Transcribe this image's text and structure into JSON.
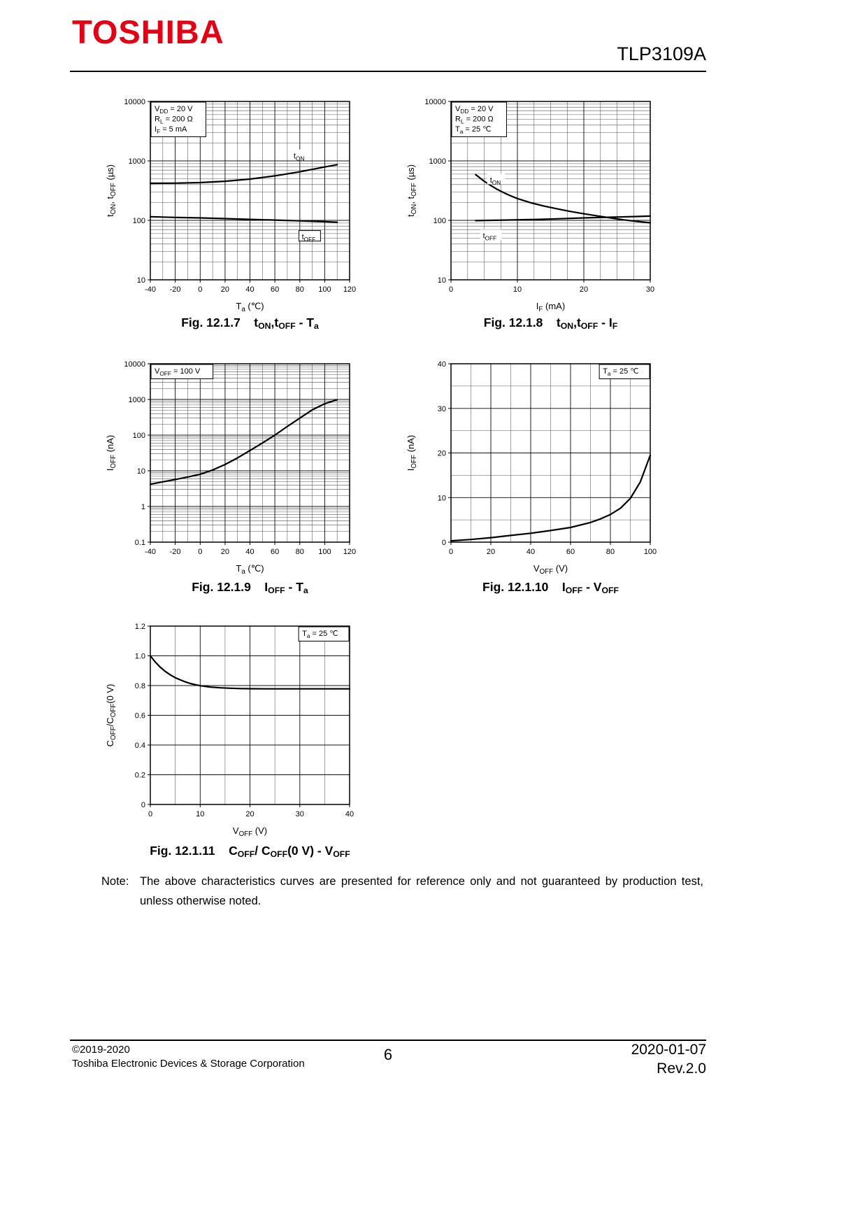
{
  "header": {
    "brand": "TOSHIBA",
    "part_number": "TLP3109A"
  },
  "note": {
    "label": "Note:",
    "line1": "The above characteristics curves are presented for reference only and not guaranteed by production test,",
    "line2": "unless otherwise noted."
  },
  "footer": {
    "copyright": "©2019-2020",
    "company": "Toshiba Electronic Devices & Storage Corporation",
    "page_number": "6",
    "date": "2020-01-07",
    "revision": "Rev.2.0"
  },
  "chart_data": [
    {
      "type": "line",
      "title": "Fig. 12.1.7 tON,tOFF - Ta",
      "caption_parts": [
        [
          "Fig. 12.1.7    t",
          0
        ],
        [
          "ON",
          1
        ],
        [
          ",t",
          0
        ],
        [
          "OFF",
          1
        ],
        [
          " - T",
          0
        ],
        [
          "a",
          1
        ]
      ],
      "x_axis": {
        "type": "linear",
        "min": -40,
        "max": 120,
        "grid_step": 10,
        "tick_values": [
          -40,
          -20,
          0,
          20,
          40,
          60,
          80,
          100,
          120
        ],
        "tick_labels": [
          "-40",
          "-20",
          "0",
          "20",
          "40",
          "60",
          "80",
          "100",
          "120"
        ],
        "label_parts": [
          [
            "T",
            0
          ],
          [
            "a",
            1
          ],
          [
            "  (℃)",
            0
          ]
        ]
      },
      "y_axis": {
        "type": "log",
        "min": 10,
        "max": 10000,
        "tick_values": [
          10,
          100,
          1000,
          10000
        ],
        "tick_labels": [
          "10",
          "100",
          "1000",
          "10000"
        ],
        "label_parts": [
          [
            "t",
            0
          ],
          [
            "ON",
            1
          ],
          [
            ", t",
            0
          ],
          [
            "OFF",
            1
          ],
          [
            "  (µs)",
            0
          ]
        ]
      },
      "conditions": {
        "pos": "tl",
        "lines": [
          [
            [
              "V",
              0
            ],
            [
              "DD",
              1
            ],
            [
              " = 20 V",
              0
            ]
          ],
          [
            [
              "R",
              0
            ],
            [
              "L",
              1
            ],
            [
              " = 200 Ω",
              0
            ]
          ],
          [
            [
              "I",
              0
            ],
            [
              "F",
              1
            ],
            [
              " = 5 mA",
              0
            ]
          ]
        ]
      },
      "series": [
        {
          "name": "tON",
          "points": [
            [
              -40,
              420
            ],
            [
              -20,
              422
            ],
            [
              0,
              432
            ],
            [
              20,
              455
            ],
            [
              40,
              495
            ],
            [
              60,
              560
            ],
            [
              80,
              655
            ],
            [
              100,
              790
            ],
            [
              110,
              865
            ]
          ]
        },
        {
          "name": "tOFF",
          "points": [
            [
              -40,
              115
            ],
            [
              -20,
              112
            ],
            [
              0,
              110
            ],
            [
              20,
              107
            ],
            [
              40,
              104
            ],
            [
              60,
              101
            ],
            [
              80,
              98
            ],
            [
              100,
              95
            ],
            [
              110,
              93
            ]
          ]
        }
      ],
      "annotations": [
        {
          "parts": [
            [
              "t",
              0
            ],
            [
              "ON",
              1
            ]
          ],
          "x": 80,
          "y": 1200,
          "box": false
        },
        {
          "parts": [
            [
              "t",
              0
            ],
            [
              "OFF",
              1
            ]
          ],
          "x": 88,
          "y": 52,
          "box": true
        }
      ]
    },
    {
      "type": "line",
      "title": "Fig. 12.1.8 tON,tOFF - IF",
      "caption_parts": [
        [
          "Fig. 12.1.8    t",
          0
        ],
        [
          "ON",
          1
        ],
        [
          ",t",
          0
        ],
        [
          "OFF",
          1
        ],
        [
          " - I",
          0
        ],
        [
          "F",
          1
        ]
      ],
      "x_axis": {
        "type": "linear",
        "min": 0,
        "max": 30,
        "grid_step": 2.5,
        "tick_values": [
          0,
          10,
          20,
          30
        ],
        "tick_labels": [
          "0",
          "10",
          "20",
          "30"
        ],
        "label_parts": [
          [
            "I",
            0
          ],
          [
            "F",
            1
          ],
          [
            "  (mA)",
            0
          ]
        ]
      },
      "y_axis": {
        "type": "log",
        "min": 10,
        "max": 10000,
        "tick_values": [
          10,
          100,
          1000,
          10000
        ],
        "tick_labels": [
          "10",
          "100",
          "1000",
          "10000"
        ],
        "label_parts": [
          [
            "t",
            0
          ],
          [
            "ON",
            1
          ],
          [
            ", t",
            0
          ],
          [
            "OFF",
            1
          ],
          [
            "  (µs)",
            0
          ]
        ]
      },
      "conditions": {
        "pos": "tl",
        "lines": [
          [
            [
              "V",
              0
            ],
            [
              "DD",
              1
            ],
            [
              " = 20 V",
              0
            ]
          ],
          [
            [
              "R",
              0
            ],
            [
              "L",
              1
            ],
            [
              " = 200 Ω",
              0
            ]
          ],
          [
            [
              "T",
              0
            ],
            [
              "a",
              1
            ],
            [
              " = 25 ℃",
              0
            ]
          ]
        ]
      },
      "series": [
        {
          "name": "tON",
          "points": [
            [
              3.7,
              590
            ],
            [
              5,
              455
            ],
            [
              6,
              385
            ],
            [
              7,
              330
            ],
            [
              8,
              290
            ],
            [
              9,
              258
            ],
            [
              10,
              233
            ],
            [
              12,
              198
            ],
            [
              14,
              174
            ],
            [
              16,
              156
            ],
            [
              18,
              141
            ],
            [
              20,
              129
            ],
            [
              22,
              119
            ],
            [
              24,
              110
            ],
            [
              26,
              102
            ],
            [
              28,
              96
            ],
            [
              30,
              91
            ]
          ]
        },
        {
          "name": "tOFF",
          "points": [
            [
              3.7,
              99
            ],
            [
              8,
              101
            ],
            [
              12,
              103
            ],
            [
              16,
              106
            ],
            [
              20,
              110
            ],
            [
              24,
              113
            ],
            [
              28,
              116
            ],
            [
              30,
              118
            ]
          ]
        }
      ],
      "annotations": [
        {
          "parts": [
            [
              "t",
              0
            ],
            [
              "ON",
              1
            ]
          ],
          "x": 6.8,
          "y": 470,
          "box": false
        },
        {
          "parts": [
            [
              "t",
              0
            ],
            [
              "OFF",
              1
            ]
          ],
          "x": 6,
          "y": 54,
          "box": false
        }
      ]
    },
    {
      "type": "line",
      "title": "Fig. 12.1.9 IOFF - Ta",
      "caption_parts": [
        [
          "Fig. 12.1.9    I",
          0
        ],
        [
          "OFF",
          1
        ],
        [
          " - T",
          0
        ],
        [
          "a",
          1
        ]
      ],
      "x_axis": {
        "type": "linear",
        "min": -40,
        "max": 120,
        "grid_step": 10,
        "tick_values": [
          -40,
          -20,
          0,
          20,
          40,
          60,
          80,
          100,
          120
        ],
        "tick_labels": [
          "-40",
          "-20",
          "0",
          "20",
          "40",
          "60",
          "80",
          "100",
          "120"
        ],
        "label_parts": [
          [
            "T",
            0
          ],
          [
            "a",
            1
          ],
          [
            "  (℃)",
            0
          ]
        ]
      },
      "y_axis": {
        "type": "log",
        "min": 0.1,
        "max": 10000,
        "tick_values": [
          0.1,
          1,
          10,
          100,
          1000,
          10000
        ],
        "tick_labels": [
          "0.1",
          "1",
          "10",
          "100",
          "1000",
          "10000"
        ],
        "label_parts": [
          [
            "I",
            0
          ],
          [
            "OFF",
            1
          ],
          [
            "  (nA)",
            0
          ]
        ]
      },
      "conditions": {
        "pos": "tl",
        "lines": [
          [
            [
              "V",
              0
            ],
            [
              "OFF",
              1
            ],
            [
              " = 100 V",
              0
            ]
          ]
        ]
      },
      "series": [
        {
          "name": "IOFF",
          "points": [
            [
              -40,
              4.2
            ],
            [
              -30,
              4.9
            ],
            [
              -20,
              5.7
            ],
            [
              -10,
              6.7
            ],
            [
              0,
              8
            ],
            [
              10,
              10.5
            ],
            [
              20,
              15
            ],
            [
              30,
              23
            ],
            [
              40,
              37
            ],
            [
              50,
              60
            ],
            [
              60,
              100
            ],
            [
              70,
              175
            ],
            [
              80,
              300
            ],
            [
              90,
              510
            ],
            [
              100,
              760
            ],
            [
              110,
              980
            ]
          ]
        }
      ],
      "annotations": []
    },
    {
      "type": "line",
      "title": "Fig. 12.1.10 IOFF - VOFF",
      "caption_parts": [
        [
          "Fig. 12.1.10    I",
          0
        ],
        [
          "OFF",
          1
        ],
        [
          " - V",
          0
        ],
        [
          "OFF",
          1
        ]
      ],
      "x_axis": {
        "type": "linear",
        "min": 0,
        "max": 100,
        "grid_step": 10,
        "tick_values": [
          0,
          20,
          40,
          60,
          80,
          100
        ],
        "tick_labels": [
          "0",
          "20",
          "40",
          "60",
          "80",
          "100"
        ],
        "label_parts": [
          [
            "V",
            0
          ],
          [
            "OFF",
            1
          ],
          [
            "  (V)",
            0
          ]
        ]
      },
      "y_axis": {
        "type": "linear",
        "min": 0,
        "max": 40,
        "grid_step": 5,
        "tick_values": [
          0,
          10,
          20,
          30,
          40
        ],
        "tick_labels": [
          "0",
          "10",
          "20",
          "30",
          "40"
        ],
        "label_parts": [
          [
            "I",
            0
          ],
          [
            "OFF",
            1
          ],
          [
            "  (nA)",
            0
          ]
        ]
      },
      "conditions": {
        "pos": "tr",
        "lines": [
          [
            [
              "T",
              0
            ],
            [
              "a",
              1
            ],
            [
              " = 25 ℃",
              0
            ]
          ]
        ]
      },
      "series": [
        {
          "name": "IOFF",
          "points": [
            [
              0,
              0.3
            ],
            [
              10,
              0.6
            ],
            [
              20,
              1.0
            ],
            [
              30,
              1.5
            ],
            [
              40,
              2.0
            ],
            [
              50,
              2.6
            ],
            [
              60,
              3.3
            ],
            [
              70,
              4.4
            ],
            [
              75,
              5.2
            ],
            [
              80,
              6.2
            ],
            [
              85,
              7.6
            ],
            [
              90,
              9.8
            ],
            [
              95,
              13.5
            ],
            [
              100,
              19.5
            ]
          ]
        }
      ],
      "annotations": []
    },
    {
      "type": "line",
      "title": "Fig. 12.1.11 COFF/ COFF(0 V) - VOFF",
      "caption_parts": [
        [
          "Fig. 12.1.11    C",
          0
        ],
        [
          "OFF",
          1
        ],
        [
          "/ C",
          0
        ],
        [
          "OFF",
          1
        ],
        [
          "(0 V) - V",
          0
        ],
        [
          "OFF",
          1
        ]
      ],
      "x_axis": {
        "type": "linear",
        "min": 0,
        "max": 40,
        "grid_step": 5,
        "tick_values": [
          0,
          10,
          20,
          30,
          40
        ],
        "tick_labels": [
          "0",
          "10",
          "20",
          "30",
          "40"
        ],
        "label_parts": [
          [
            "V",
            0
          ],
          [
            "OFF",
            1
          ],
          [
            "  (V)",
            0
          ]
        ]
      },
      "y_axis": {
        "type": "linear",
        "min": 0,
        "max": 1.2,
        "grid_step": 0.2,
        "tick_values": [
          0,
          0.2,
          0.4,
          0.6,
          0.8,
          1.0,
          1.2
        ],
        "tick_labels": [
          "0",
          "0.2",
          "0.4",
          "0.6",
          "0.8",
          "1.0",
          "1.2"
        ],
        "label_parts": [
          [
            "C",
            0
          ],
          [
            "OFF",
            1
          ],
          [
            "/C",
            0
          ],
          [
            "OFF",
            1
          ],
          [
            "(0 V)",
            0
          ]
        ]
      },
      "conditions": {
        "pos": "tr",
        "lines": [
          [
            [
              "T",
              0
            ],
            [
              "a",
              1
            ],
            [
              " = 25 ℃",
              0
            ]
          ]
        ]
      },
      "series": [
        {
          "name": "COFF_ratio",
          "points": [
            [
              0,
              1.0
            ],
            [
              1,
              0.958
            ],
            [
              2,
              0.923
            ],
            [
              3,
              0.895
            ],
            [
              4,
              0.872
            ],
            [
              5,
              0.853
            ],
            [
              6,
              0.838
            ],
            [
              7,
              0.825
            ],
            [
              8,
              0.814
            ],
            [
              9,
              0.806
            ],
            [
              10,
              0.799
            ],
            [
              12,
              0.79
            ],
            [
              14,
              0.785
            ],
            [
              16,
              0.782
            ],
            [
              18,
              0.78
            ],
            [
              20,
              0.779
            ],
            [
              24,
              0.778
            ],
            [
              28,
              0.778
            ],
            [
              32,
              0.778
            ],
            [
              36,
              0.778
            ],
            [
              40,
              0.778
            ]
          ]
        }
      ],
      "annotations": []
    }
  ]
}
